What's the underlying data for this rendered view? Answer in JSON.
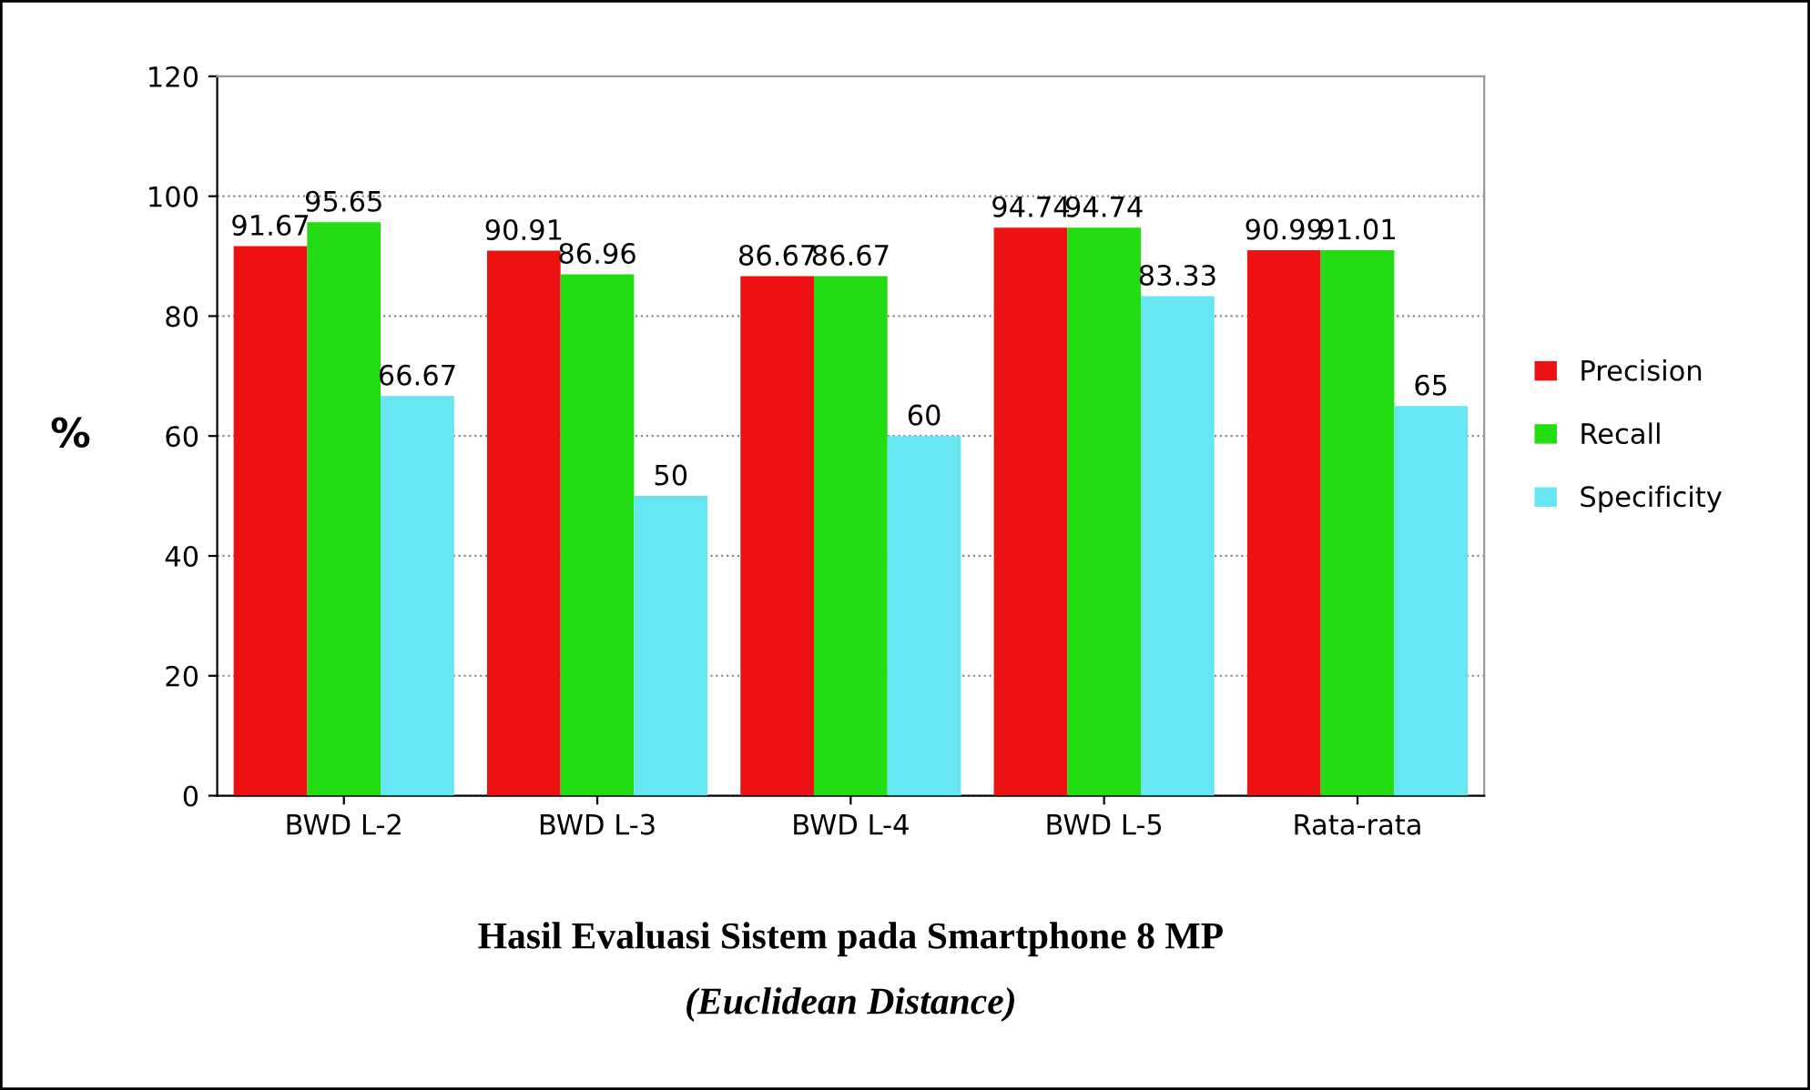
{
  "chart_data": {
    "type": "bar",
    "title": "Hasil Evaluasi Sistem pada Smartphone 8 MP",
    "subtitle": "(Euclidean Distance)",
    "ylabel": "%",
    "categories": [
      "BWD L-2",
      "BWD L-3",
      "BWD L-4",
      "BWD L-5",
      "Rata-rata"
    ],
    "series": [
      {
        "name": "Precision",
        "color": "#ee1111",
        "values": [
          91.67,
          90.91,
          86.67,
          94.74,
          90.99
        ]
      },
      {
        "name": "Recall",
        "color": "#22dd11",
        "values": [
          95.65,
          86.96,
          86.67,
          94.74,
          91.01
        ]
      },
      {
        "name": "Specificity",
        "color": "#66e6f0",
        "values": [
          66.67,
          50,
          60,
          83.33,
          65
        ]
      }
    ],
    "ylim": [
      0,
      120
    ],
    "yticks": [
      0,
      20,
      40,
      60,
      80,
      100,
      120
    ],
    "grid": "y",
    "legend": "right",
    "data_labels": true
  }
}
